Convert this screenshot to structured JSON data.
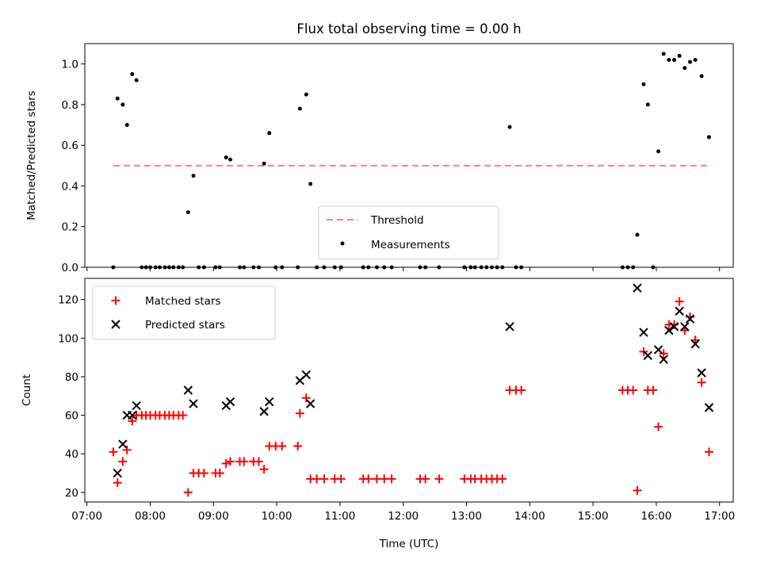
{
  "chart_data": [
    {
      "type": "scatter",
      "title": "Flux total observing time = 0.00 h",
      "xlabel": "",
      "ylabel": "Matched/Predicted stars",
      "ylim": [
        0,
        1.1
      ],
      "yticks": [
        "0.0",
        "0.2",
        "0.4",
        "0.6",
        "0.8",
        "1.0"
      ],
      "legend": {
        "placement": "lower center",
        "entries": [
          "Threshold",
          "Measurements"
        ]
      },
      "threshold": {
        "name": "Threshold",
        "value": 0.5,
        "x_start": "07:25",
        "x_end": "16:50",
        "color": "#ff7f7f",
        "style": "dashed"
      },
      "series": [
        {
          "name": "Measurements",
          "color": "#000000",
          "marker": "dot",
          "points": [
            [
              "07:25",
              0.0
            ],
            [
              "07:29",
              0.83
            ],
            [
              "07:34",
              0.8
            ],
            [
              "07:38",
              0.7
            ],
            [
              "07:43",
              0.95
            ],
            [
              "07:47",
              0.92
            ],
            [
              "07:52",
              0.0
            ],
            [
              "07:56",
              0.0
            ],
            [
              "08:00",
              0.0
            ],
            [
              "08:05",
              0.0
            ],
            [
              "08:09",
              0.0
            ],
            [
              "08:14",
              0.0
            ],
            [
              "08:18",
              0.0
            ],
            [
              "08:22",
              0.0
            ],
            [
              "08:27",
              0.0
            ],
            [
              "08:31",
              0.0
            ],
            [
              "08:36",
              0.27
            ],
            [
              "08:41",
              0.45
            ],
            [
              "08:46",
              0.0
            ],
            [
              "08:51",
              0.0
            ],
            [
              "09:02",
              0.0
            ],
            [
              "09:06",
              0.0
            ],
            [
              "09:12",
              0.54
            ],
            [
              "09:16",
              0.53
            ],
            [
              "09:25",
              0.0
            ],
            [
              "09:29",
              0.0
            ],
            [
              "09:38",
              0.0
            ],
            [
              "09:43",
              0.0
            ],
            [
              "09:48",
              0.51
            ],
            [
              "09:53",
              0.66
            ],
            [
              "09:59",
              0.0
            ],
            [
              "10:05",
              0.0
            ],
            [
              "10:20",
              0.0
            ],
            [
              "10:22",
              0.78
            ],
            [
              "10:28",
              0.85
            ],
            [
              "10:32",
              0.41
            ],
            [
              "10:38",
              0.0
            ],
            [
              "10:45",
              0.0
            ],
            [
              "10:55",
              0.0
            ],
            [
              "11:01",
              0.0
            ],
            [
              "11:22",
              0.0
            ],
            [
              "11:27",
              0.0
            ],
            [
              "11:35",
              0.0
            ],
            [
              "11:42",
              0.0
            ],
            [
              "11:49",
              0.0
            ],
            [
              "12:16",
              0.0
            ],
            [
              "12:21",
              0.0
            ],
            [
              "12:34",
              0.0
            ],
            [
              "12:58",
              0.0
            ],
            [
              "13:04",
              0.0
            ],
            [
              "13:08",
              0.0
            ],
            [
              "13:14",
              0.0
            ],
            [
              "13:19",
              0.0
            ],
            [
              "13:24",
              0.0
            ],
            [
              "13:29",
              0.0
            ],
            [
              "13:34",
              0.0
            ],
            [
              "13:41",
              0.69
            ],
            [
              "13:47",
              0.0
            ],
            [
              "13:52",
              0.0
            ],
            [
              "15:28",
              0.0
            ],
            [
              "15:33",
              0.0
            ],
            [
              "15:38",
              0.0
            ],
            [
              "15:42",
              0.16
            ],
            [
              "15:48",
              0.9
            ],
            [
              "15:52",
              0.8
            ],
            [
              "15:57",
              0.0
            ],
            [
              "16:02",
              0.57
            ],
            [
              "16:07",
              1.05
            ],
            [
              "16:12",
              1.02
            ],
            [
              "16:17",
              1.02
            ],
            [
              "16:22",
              1.04
            ],
            [
              "16:27",
              0.98
            ],
            [
              "16:32",
              1.01
            ],
            [
              "16:37",
              1.02
            ],
            [
              "16:43",
              0.94
            ],
            [
              "16:50",
              0.64
            ]
          ]
        }
      ]
    },
    {
      "type": "scatter",
      "title": "",
      "xlabel": "Time (UTC)",
      "ylabel": "Count",
      "xlim": [
        "06:58",
        "17:13"
      ],
      "ylim": [
        15,
        131
      ],
      "xticks": [
        "07:00",
        "08:00",
        "09:00",
        "10:00",
        "11:00",
        "12:00",
        "13:00",
        "14:00",
        "15:00",
        "16:00",
        "17:00"
      ],
      "yticks": [
        "20",
        "40",
        "60",
        "80",
        "100",
        "120"
      ],
      "legend": {
        "placement": "top-left",
        "entries": [
          "Matched stars",
          "Predicted stars"
        ]
      },
      "series": [
        {
          "name": "Matched stars",
          "color": "#ff0000",
          "marker": "plus",
          "points": [
            [
              "07:25",
              41
            ],
            [
              "07:29",
              25
            ],
            [
              "07:34",
              36
            ],
            [
              "07:38",
              42
            ],
            [
              "07:43",
              57
            ],
            [
              "07:47",
              60
            ],
            [
              "07:52",
              60
            ],
            [
              "07:56",
              60
            ],
            [
              "08:00",
              60
            ],
            [
              "08:05",
              60
            ],
            [
              "08:09",
              60
            ],
            [
              "08:14",
              60
            ],
            [
              "08:18",
              60
            ],
            [
              "08:22",
              60
            ],
            [
              "08:27",
              60
            ],
            [
              "08:31",
              60
            ],
            [
              "08:36",
              20
            ],
            [
              "08:41",
              30
            ],
            [
              "08:46",
              30
            ],
            [
              "08:51",
              30
            ],
            [
              "09:02",
              30
            ],
            [
              "09:06",
              30
            ],
            [
              "09:12",
              35
            ],
            [
              "09:16",
              36
            ],
            [
              "09:25",
              36
            ],
            [
              "09:29",
              36
            ],
            [
              "09:38",
              36
            ],
            [
              "09:43",
              36
            ],
            [
              "09:48",
              32
            ],
            [
              "09:53",
              44
            ],
            [
              "09:59",
              44
            ],
            [
              "10:05",
              44
            ],
            [
              "10:20",
              44
            ],
            [
              "10:22",
              61
            ],
            [
              "10:28",
              69
            ],
            [
              "10:32",
              27
            ],
            [
              "10:38",
              27
            ],
            [
              "10:45",
              27
            ],
            [
              "10:55",
              27
            ],
            [
              "11:01",
              27
            ],
            [
              "11:22",
              27
            ],
            [
              "11:27",
              27
            ],
            [
              "11:35",
              27
            ],
            [
              "11:42",
              27
            ],
            [
              "11:49",
              27
            ],
            [
              "12:16",
              27
            ],
            [
              "12:21",
              27
            ],
            [
              "12:34",
              27
            ],
            [
              "12:58",
              27
            ],
            [
              "13:04",
              27
            ],
            [
              "13:08",
              27
            ],
            [
              "13:14",
              27
            ],
            [
              "13:19",
              27
            ],
            [
              "13:24",
              27
            ],
            [
              "13:29",
              27
            ],
            [
              "13:34",
              27
            ],
            [
              "13:41",
              73
            ],
            [
              "13:47",
              73
            ],
            [
              "13:52",
              73
            ],
            [
              "15:28",
              73
            ],
            [
              "15:33",
              73
            ],
            [
              "15:38",
              73
            ],
            [
              "15:42",
              21
            ],
            [
              "15:48",
              93
            ],
            [
              "15:52",
              73
            ],
            [
              "15:57",
              73
            ],
            [
              "16:02",
              54
            ],
            [
              "16:07",
              92
            ],
            [
              "16:12",
              107
            ],
            [
              "16:17",
              107
            ],
            [
              "16:22",
              119
            ],
            [
              "16:27",
              104
            ],
            [
              "16:32",
              111
            ],
            [
              "16:37",
              99
            ],
            [
              "16:43",
              77
            ],
            [
              "16:50",
              41
            ]
          ]
        },
        {
          "name": "Predicted stars",
          "color": "#000000",
          "marker": "x",
          "points": [
            [
              "07:29",
              30
            ],
            [
              "07:34",
              45
            ],
            [
              "07:38",
              60
            ],
            [
              "07:43",
              60
            ],
            [
              "07:47",
              65
            ],
            [
              "08:36",
              73
            ],
            [
              "08:41",
              66
            ],
            [
              "09:12",
              65
            ],
            [
              "09:16",
              67
            ],
            [
              "09:48",
              62
            ],
            [
              "09:53",
              67
            ],
            [
              "10:22",
              78
            ],
            [
              "10:28",
              81
            ],
            [
              "10:32",
              66
            ],
            [
              "13:41",
              106
            ],
            [
              "15:42",
              126
            ],
            [
              "15:48",
              103
            ],
            [
              "15:52",
              91
            ],
            [
              "16:02",
              94
            ],
            [
              "16:07",
              89
            ],
            [
              "16:12",
              104
            ],
            [
              "16:17",
              106
            ],
            [
              "16:22",
              114
            ],
            [
              "16:27",
              106
            ],
            [
              "16:32",
              110
            ],
            [
              "16:37",
              97
            ],
            [
              "16:43",
              82
            ],
            [
              "16:50",
              64
            ]
          ]
        }
      ]
    }
  ]
}
